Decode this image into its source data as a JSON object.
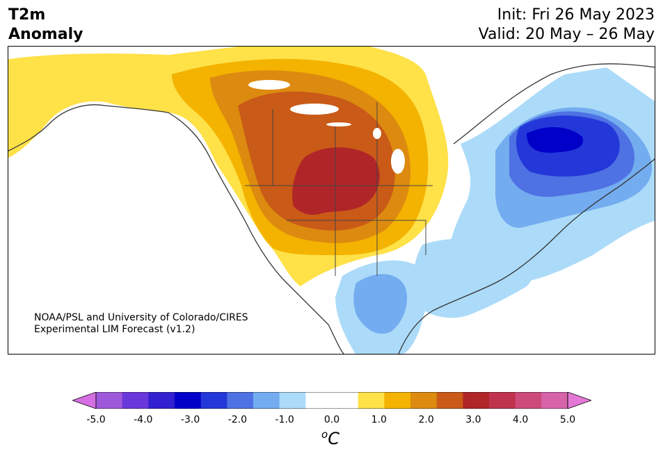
{
  "title": {
    "line1": "T2m",
    "line2": "Anomaly"
  },
  "info": {
    "init": "Init: Fri 26 May 2023",
    "valid": "Valid: 20 May – 26 May"
  },
  "credit": {
    "line1": "NOAA/PSL and University of Colorado/CIRES",
    "line2": "Experimental LIM Forecast (v1.2)"
  },
  "colorbar": {
    "colors": [
      "#d66fe4",
      "#9e58da",
      "#6a37da",
      "#3320d0",
      "#0000c9",
      "#2437d8",
      "#4e71e3",
      "#74acf0",
      "#acdbf9",
      "#ffffff",
      "#ffffff",
      "#ffe148",
      "#f3b300",
      "#dd8a10",
      "#c95a17",
      "#b02527",
      "#c0334f",
      "#cc4b78",
      "#d764a9",
      "#e478d6"
    ],
    "ticks": [
      "-5.0",
      "-4.0",
      "-3.0",
      "-2.0",
      "-1.0",
      "0.0",
      "1.0",
      "2.0",
      "3.0",
      "4.0",
      "5.0"
    ],
    "unit_sup": "o",
    "unit": "C"
  }
}
